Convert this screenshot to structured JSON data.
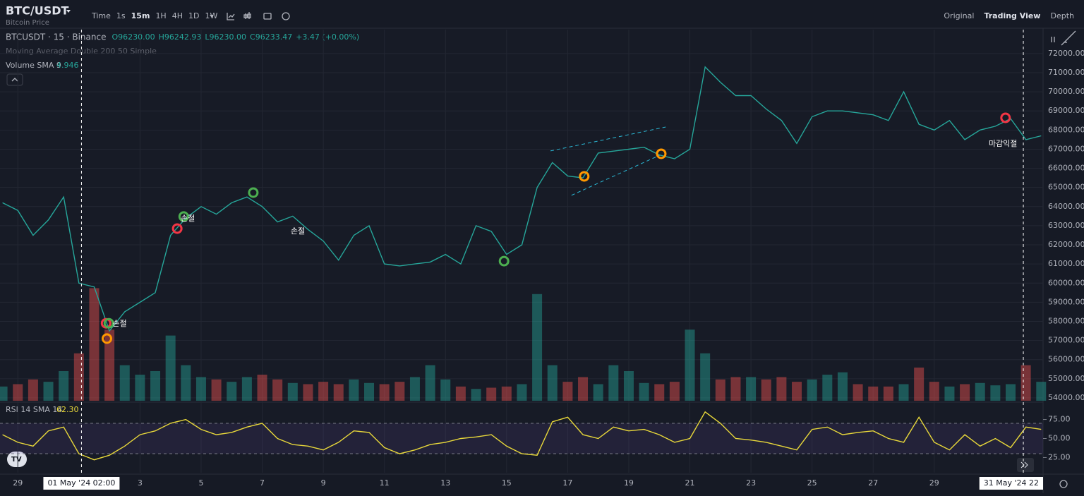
{
  "toolbar": {
    "symbol": "BTC/USDT",
    "subtitle": "Bitcoin Price",
    "timeframes": [
      "Time",
      "1s",
      "15m",
      "1H",
      "4H",
      "1D",
      "1W"
    ],
    "views": [
      "Original",
      "Trading View",
      "Depth"
    ]
  },
  "chart_data": [
    {
      "type": "line",
      "title": "BTCUSDT · 15 · Binance",
      "ohlc": [
        "O96230.00",
        "H96242.93",
        "L96230.00",
        "C96233.47",
        "+3.47 (+0.00%)"
      ],
      "indicator": "Moving Average Double 200 50 Simple",
      "x": [
        "2024-04-28 12:00",
        "2024-04-29 00:00",
        "2024-04-29 12:00",
        "2024-04-30 00:00",
        "2024-04-30 12:00",
        "2024-05-01 00:00",
        "2024-05-01 12:00",
        "2024-05-02 00:00",
        "2024-05-02 12:00",
        "2024-05-03 00:00",
        "2024-05-03 12:00",
        "2024-05-04 00:00",
        "2024-05-04 12:00",
        "2024-05-05 00:00",
        "2024-05-05 12:00",
        "2024-05-06 00:00",
        "2024-05-06 12:00",
        "2024-05-07 00:00",
        "2024-05-07 12:00",
        "2024-05-08 00:00",
        "2024-05-08 12:00",
        "2024-05-09 00:00",
        "2024-05-09 12:00",
        "2024-05-10 00:00",
        "2024-05-10 12:00",
        "2024-05-11 00:00",
        "2024-05-11 12:00",
        "2024-05-12 00:00",
        "2024-05-12 12:00",
        "2024-05-13 00:00",
        "2024-05-13 12:00",
        "2024-05-14 00:00",
        "2024-05-14 12:00",
        "2024-05-15 00:00",
        "2024-05-15 12:00",
        "2024-05-16 00:00",
        "2024-05-16 12:00",
        "2024-05-17 00:00",
        "2024-05-17 12:00",
        "2024-05-18 00:00",
        "2024-05-18 12:00",
        "2024-05-19 00:00",
        "2024-05-19 12:00",
        "2024-05-20 00:00",
        "2024-05-20 12:00",
        "2024-05-21 00:00",
        "2024-05-21 12:00",
        "2024-05-22 00:00",
        "2024-05-22 12:00",
        "2024-05-23 00:00",
        "2024-05-23 12:00",
        "2024-05-24 00:00",
        "2024-05-24 12:00",
        "2024-05-25 00:00",
        "2024-05-25 12:00",
        "2024-05-26 00:00",
        "2024-05-26 12:00",
        "2024-05-27 00:00",
        "2024-05-27 12:00",
        "2024-05-28 00:00",
        "2024-05-28 12:00",
        "2024-05-29 00:00",
        "2024-05-29 12:00",
        "2024-05-30 00:00",
        "2024-05-30 12:00",
        "2024-05-31 00:00",
        "2024-05-31 12:00",
        "2024-06-01 00:00",
        "2024-06-01 12:00"
      ],
      "series": [
        {
          "name": "BTCUSDT",
          "color": "#26a69a",
          "values": [
            64200,
            63800,
            62500,
            63300,
            64500,
            60000,
            59800,
            57500,
            58500,
            59000,
            59500,
            62500,
            63400,
            64000,
            63600,
            64200,
            64500,
            64000,
            63200,
            63500,
            62800,
            62200,
            61200,
            62500,
            63000,
            61000,
            60900,
            61000,
            61100,
            61500,
            61000,
            63000,
            62700,
            61500,
            62000,
            65000,
            66300,
            65600,
            65500,
            66800,
            66900,
            67000,
            67100,
            66700,
            66500,
            67000,
            71300,
            70500,
            69800,
            69800,
            69100,
            68500,
            67300,
            68700,
            69000,
            69000,
            68900,
            68800,
            68500,
            70000,
            68300,
            68000,
            68500,
            67500,
            68000,
            68200,
            68600,
            67500,
            67700
          ]
        }
      ],
      "xlim": [
        "2024-04-28 10:00",
        "2024-06-01 13:30"
      ],
      "xticks": [
        {
          "value": "2024-04-29 00:00",
          "label": "29"
        },
        {
          "value": "2024-05-03 00:00",
          "label": "3"
        },
        {
          "value": "2024-05-05 00:00",
          "label": "5"
        },
        {
          "value": "2024-05-07 00:00",
          "label": "7"
        },
        {
          "value": "2024-05-09 00:00",
          "label": "9"
        },
        {
          "value": "2024-05-11 00:00",
          "label": "11"
        },
        {
          "value": "2024-05-13 00:00",
          "label": "13"
        },
        {
          "value": "2024-05-15 00:00",
          "label": "15"
        },
        {
          "value": "2024-05-17 00:00",
          "label": "17"
        },
        {
          "value": "2024-05-19 00:00",
          "label": "19"
        },
        {
          "value": "2024-05-21 00:00",
          "label": "21"
        },
        {
          "value": "2024-05-23 00:00",
          "label": "23"
        },
        {
          "value": "2024-05-25 00:00",
          "label": "25"
        },
        {
          "value": "2024-05-27 00:00",
          "label": "27"
        },
        {
          "value": "2024-05-29 00:00",
          "label": "29"
        }
      ],
      "ylim": [
        53850,
        73250
      ],
      "yticks": [
        {
          "value": 54000,
          "label": "54000.00"
        },
        {
          "value": 55000,
          "label": "55000.00"
        },
        {
          "value": 56000,
          "label": "56000.00"
        },
        {
          "value": 57000,
          "label": "57000.00"
        },
        {
          "value": 58000,
          "label": "58000.00"
        },
        {
          "value": 59000,
          "label": "59000.00"
        },
        {
          "value": 60000,
          "label": "60000.00"
        },
        {
          "value": 61000,
          "label": "61000.00"
        },
        {
          "value": 62000,
          "label": "62000.00"
        },
        {
          "value": 63000,
          "label": "63000.00"
        },
        {
          "value": 64000,
          "label": "64000.00"
        },
        {
          "value": 65000,
          "label": "65000.00"
        },
        {
          "value": 66000,
          "label": "66000.00"
        },
        {
          "value": 67000,
          "label": "67000.00"
        },
        {
          "value": 68000,
          "label": "68000.00"
        },
        {
          "value": 69000,
          "label": "69000.00"
        },
        {
          "value": 70000,
          "label": "70000.00"
        },
        {
          "value": 71000,
          "label": "71000.00"
        },
        {
          "value": 72000,
          "label": "72000.00"
        }
      ],
      "grid": true,
      "markers": [
        {
          "x": "2024-05-01 21:20",
          "y": 57900,
          "color": "#f23645"
        },
        {
          "x": "2024-05-01 23:30",
          "y": 57900,
          "color": "#4caf50"
        },
        {
          "x": "2024-05-01 22:00",
          "y": 57100,
          "color": "#ff9800"
        },
        {
          "x": "2024-05-04 05:15",
          "y": 62850,
          "color": "#f23645"
        },
        {
          "x": "2024-05-04 10:20",
          "y": 63480,
          "color": "#4caf50"
        },
        {
          "x": "2024-05-06 17:00",
          "y": 64730,
          "color": "#4caf50"
        },
        {
          "x": "2024-05-14 22:00",
          "y": 61150,
          "color": "#4caf50"
        },
        {
          "x": "2024-05-17 13:00",
          "y": 65580,
          "color": "#ff9800"
        },
        {
          "x": "2024-05-20 01:30",
          "y": 66760,
          "color": "#ff9800"
        },
        {
          "x": "2024-05-31 08:00",
          "y": 68640,
          "color": "#f23645"
        }
      ],
      "annotations": [
        {
          "text": "손절",
          "x": "2024-05-04 13:35",
          "y": 63370
        },
        {
          "text": "손절",
          "x": "2024-05-08 04:00",
          "y": 62700
        },
        {
          "text": "손절",
          "x": "2024-05-02 08:00",
          "y": 57870
        },
        {
          "text": "마감익절",
          "x": "2024-05-31 06:00",
          "y": 67280
        }
      ],
      "trendlines": [
        {
          "x": [
            "2024-05-16 10:30",
            "2024-05-20 05:00"
          ],
          "y": [
            66910,
            68160
          ],
          "color": "#2bb7d4"
        },
        {
          "x": [
            "2024-05-17 03:00",
            "2024-05-20 00:30"
          ],
          "y": [
            64590,
            66690
          ],
          "color": "#2bb7d4"
        }
      ],
      "crosshairs": [
        {
          "x": "2024-05-01 02:00",
          "label": "01 May '24  02:00"
        },
        {
          "x": "2024-05-31 22:00",
          "label": "31 May '24  22"
        }
      ]
    },
    {
      "type": "bar",
      "title": "Volume SMA 9",
      "sma": 4.946,
      "x": [
        "2024-04-28 12:00",
        "2024-04-29 00:00",
        "2024-04-29 12:00",
        "2024-04-30 00:00",
        "2024-04-30 12:00",
        "2024-05-01 00:00",
        "2024-05-01 12:00",
        "2024-05-02 00:00",
        "2024-05-02 12:00",
        "2024-05-03 00:00",
        "2024-05-03 12:00",
        "2024-05-04 00:00",
        "2024-05-04 12:00",
        "2024-05-05 00:00",
        "2024-05-05 12:00",
        "2024-05-06 00:00",
        "2024-05-06 12:00",
        "2024-05-07 00:00",
        "2024-05-07 12:00",
        "2024-05-08 00:00",
        "2024-05-08 12:00",
        "2024-05-09 00:00",
        "2024-05-09 12:00",
        "2024-05-10 00:00",
        "2024-05-10 12:00",
        "2024-05-11 00:00",
        "2024-05-11 12:00",
        "2024-05-12 00:00",
        "2024-05-12 12:00",
        "2024-05-13 00:00",
        "2024-05-13 12:00",
        "2024-05-14 00:00",
        "2024-05-14 12:00",
        "2024-05-15 00:00",
        "2024-05-15 12:00",
        "2024-05-16 00:00",
        "2024-05-16 12:00",
        "2024-05-17 00:00",
        "2024-05-17 12:00",
        "2024-05-18 00:00",
        "2024-05-18 12:00",
        "2024-05-19 00:00",
        "2024-05-19 12:00",
        "2024-05-20 00:00",
        "2024-05-20 12:00",
        "2024-05-21 00:00",
        "2024-05-21 12:00",
        "2024-05-22 00:00",
        "2024-05-22 12:00",
        "2024-05-23 00:00",
        "2024-05-23 12:00",
        "2024-05-24 00:00",
        "2024-05-24 12:00",
        "2024-05-25 00:00",
        "2024-05-25 12:00",
        "2024-05-26 00:00",
        "2024-05-26 12:00",
        "2024-05-27 00:00",
        "2024-05-27 12:00",
        "2024-05-28 00:00",
        "2024-05-28 12:00",
        "2024-05-29 00:00",
        "2024-05-29 12:00",
        "2024-05-30 00:00",
        "2024-05-30 12:00",
        "2024-05-31 00:00",
        "2024-05-31 12:00",
        "2024-06-01 00:00",
        "2024-06-01 12:00"
      ],
      "values": [
        12,
        14,
        18,
        16,
        25,
        40,
        95,
        60,
        30,
        22,
        25,
        55,
        30,
        20,
        18,
        16,
        20,
        22,
        18,
        15,
        14,
        16,
        14,
        18,
        15,
        14,
        16,
        20,
        30,
        18,
        12,
        10,
        11,
        12,
        14,
        90,
        30,
        16,
        20,
        14,
        30,
        25,
        15,
        14,
        16,
        60,
        40,
        18,
        20,
        20,
        18,
        20,
        16,
        18,
        22,
        24,
        14,
        12,
        12,
        14,
        28,
        16,
        12,
        14,
        15,
        13,
        14,
        30,
        16
      ],
      "colors": [
        "#26a69a",
        "#ef5350"
      ],
      "ylim": [
        0,
        100
      ]
    },
    {
      "type": "line",
      "title": "RSI 14 SMA 14",
      "last": {
        "value": 62.3,
        "label": "62.30"
      },
      "color": "#e8d83a",
      "x": [
        "2024-04-28 12:00",
        "2024-04-29 00:00",
        "2024-04-29 12:00",
        "2024-04-30 00:00",
        "2024-04-30 12:00",
        "2024-05-01 00:00",
        "2024-05-01 12:00",
        "2024-05-02 00:00",
        "2024-05-02 12:00",
        "2024-05-03 00:00",
        "2024-05-03 12:00",
        "2024-05-04 00:00",
        "2024-05-04 12:00",
        "2024-05-05 00:00",
        "2024-05-05 12:00",
        "2024-05-06 00:00",
        "2024-05-06 12:00",
        "2024-05-07 00:00",
        "2024-05-07 12:00",
        "2024-05-08 00:00",
        "2024-05-08 12:00",
        "2024-05-09 00:00",
        "2024-05-09 12:00",
        "2024-05-10 00:00",
        "2024-05-10 12:00",
        "2024-05-11 00:00",
        "2024-05-11 12:00",
        "2024-05-12 00:00",
        "2024-05-12 12:00",
        "2024-05-13 00:00",
        "2024-05-13 12:00",
        "2024-05-14 00:00",
        "2024-05-14 12:00",
        "2024-05-15 00:00",
        "2024-05-15 12:00",
        "2024-05-16 00:00",
        "2024-05-16 12:00",
        "2024-05-17 00:00",
        "2024-05-17 12:00",
        "2024-05-18 00:00",
        "2024-05-18 12:00",
        "2024-05-19 00:00",
        "2024-05-19 12:00",
        "2024-05-20 00:00",
        "2024-05-20 12:00",
        "2024-05-21 00:00",
        "2024-05-21 12:00",
        "2024-05-22 00:00",
        "2024-05-22 12:00",
        "2024-05-23 00:00",
        "2024-05-23 12:00",
        "2024-05-24 00:00",
        "2024-05-24 12:00",
        "2024-05-25 00:00",
        "2024-05-25 12:00",
        "2024-05-26 00:00",
        "2024-05-26 12:00",
        "2024-05-27 00:00",
        "2024-05-27 12:00",
        "2024-05-28 00:00",
        "2024-05-28 12:00",
        "2024-05-29 00:00",
        "2024-05-29 12:00",
        "2024-05-30 00:00",
        "2024-05-30 12:00",
        "2024-05-31 00:00",
        "2024-05-31 12:00",
        "2024-06-01 00:00",
        "2024-06-01 12:00"
      ],
      "values": [
        55,
        45,
        40,
        60,
        65,
        30,
        22,
        28,
        40,
        55,
        60,
        70,
        75,
        62,
        55,
        58,
        65,
        70,
        50,
        42,
        40,
        35,
        45,
        60,
        58,
        38,
        30,
        35,
        42,
        45,
        50,
        52,
        55,
        40,
        30,
        28,
        72,
        78,
        55,
        50,
        65,
        60,
        62,
        55,
        45,
        50,
        85,
        70,
        50,
        48,
        45,
        40,
        35,
        62,
        65,
        55,
        58,
        60,
        50,
        45,
        78,
        45,
        35,
        55,
        40,
        50,
        38,
        65,
        62
      ],
      "ylim": [
        5,
        95
      ],
      "yticks": [
        {
          "value": 25,
          "label": "25.00"
        },
        {
          "value": 50,
          "label": "50.00"
        },
        {
          "value": 75,
          "label": "75.00"
        }
      ],
      "band": [
        30,
        70
      ]
    }
  ]
}
